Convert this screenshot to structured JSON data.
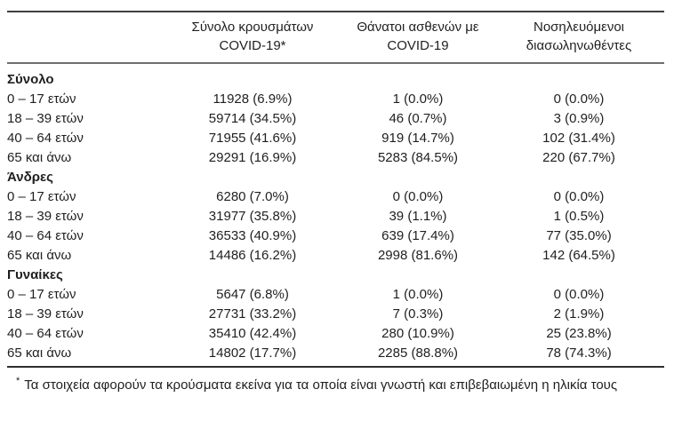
{
  "colors": {
    "text": "#1f1f1f",
    "rule_top": "#3f3f3f",
    "rule_header": "#6e6e6e",
    "rule_bottom": "#2f2f2f",
    "background": "#ffffff"
  },
  "table": {
    "header": {
      "columns": [
        {
          "line1": "Σύνολο κρουσμάτων",
          "line2": "COVID-19*"
        },
        {
          "line1": "Θάνατοι ασθενών με",
          "line2": "COVID-19"
        },
        {
          "line1": "Νοσηλευόμενοι",
          "line2": "διασωληνωθέντες"
        }
      ]
    },
    "sections": [
      {
        "title": "Σύνολο",
        "rows": [
          {
            "label": "0 – 17 ετών",
            "cases": "11928 (6.9%)",
            "deaths": "1 (0.0%)",
            "intubated": "0 (0.0%)"
          },
          {
            "label": "18 – 39 ετών",
            "cases": "59714 (34.5%)",
            "deaths": "46 (0.7%)",
            "intubated": "3 (0.9%)"
          },
          {
            "label": "40 – 64 ετών",
            "cases": "71955 (41.6%)",
            "deaths": "919 (14.7%)",
            "intubated": "102 (31.4%)"
          },
          {
            "label": "65 και άνω",
            "cases": "29291 (16.9%)",
            "deaths": "5283 (84.5%)",
            "intubated": "220 (67.7%)"
          }
        ]
      },
      {
        "title": "Άνδρες",
        "rows": [
          {
            "label": "0 – 17 ετών",
            "cases": "6280 (7.0%)",
            "deaths": "0 (0.0%)",
            "intubated": "0 (0.0%)"
          },
          {
            "label": "18 – 39 ετών",
            "cases": "31977 (35.8%)",
            "deaths": "39 (1.1%)",
            "intubated": "1 (0.5%)"
          },
          {
            "label": "40 – 64 ετών",
            "cases": "36533 (40.9%)",
            "deaths": "639 (17.4%)",
            "intubated": "77 (35.0%)"
          },
          {
            "label": "65 και άνω",
            "cases": "14486 (16.2%)",
            "deaths": "2998 (81.6%)",
            "intubated": "142 (64.5%)"
          }
        ]
      },
      {
        "title": "Γυναίκες",
        "rows": [
          {
            "label": "0 – 17 ετών",
            "cases": "5647 (6.8%)",
            "deaths": "1 (0.0%)",
            "intubated": "0 (0.0%)"
          },
          {
            "label": "18 – 39 ετών",
            "cases": "27731 (33.2%)",
            "deaths": "7 (0.3%)",
            "intubated": "2 (1.9%)"
          },
          {
            "label": "40 – 64 ετών",
            "cases": "35410 (42.4%)",
            "deaths": "280 (10.9%)",
            "intubated": "25 (23.8%)"
          },
          {
            "label": "65 και άνω",
            "cases": "14802 (17.7%)",
            "deaths": "2285 (88.8%)",
            "intubated": "78 (74.3%)"
          }
        ]
      }
    ]
  },
  "footnote": {
    "marker": "*",
    "text": "Τα στοιχεία αφορούν τα κρούσματα εκείνα για τα οποία είναι γνωστή και επιβεβαιωμένη η ηλικία τους"
  }
}
